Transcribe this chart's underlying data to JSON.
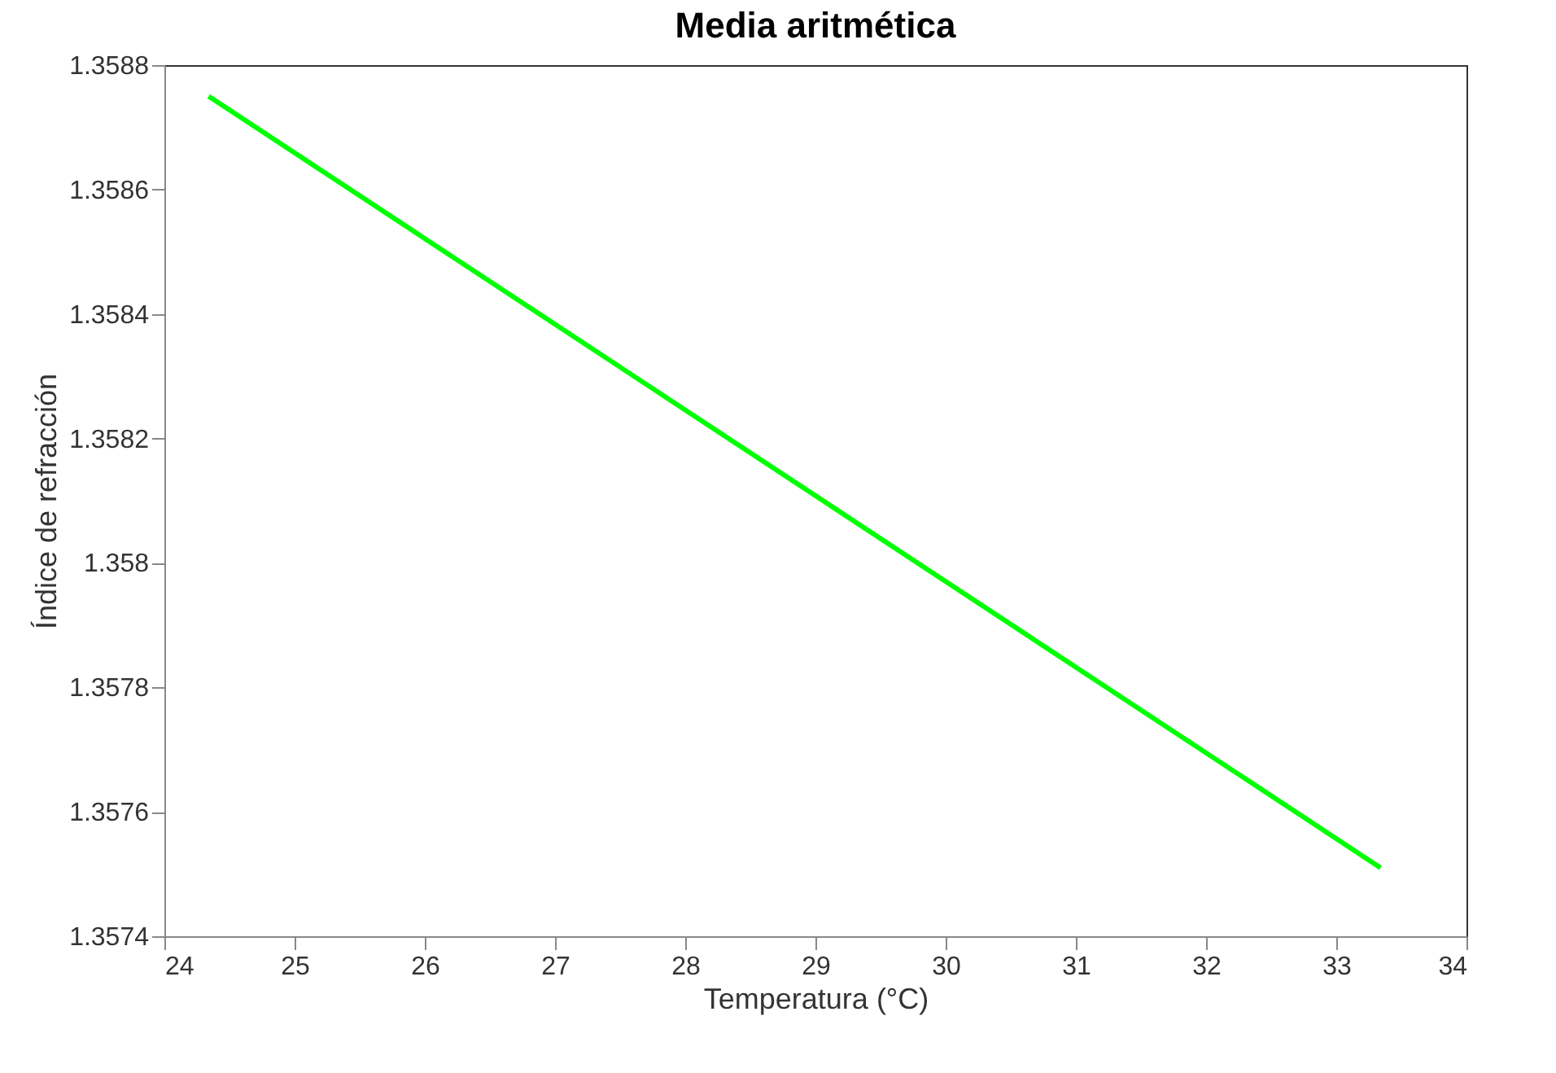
{
  "chart_data": {
    "type": "line",
    "title": "Media aritmética",
    "xlabel": "Temperatura (°C)",
    "ylabel": "Índice de refracción",
    "x": [
      24.34,
      33.34
    ],
    "series": [
      {
        "color": "#00ff00",
        "values": [
          1.35875,
          1.35751
        ]
      }
    ],
    "xlim": [
      24,
      34
    ],
    "xticks": [
      24,
      25,
      26,
      27,
      28,
      29,
      30,
      31,
      32,
      33,
      34
    ],
    "ylim": [
      1.3574,
      1.3588
    ],
    "yticks": [
      1.3574,
      1.3576,
      1.3578,
      1.358,
      1.3582,
      1.3584,
      1.3586,
      1.3588
    ],
    "grid": false,
    "line_style": "solid",
    "marker": "none"
  }
}
